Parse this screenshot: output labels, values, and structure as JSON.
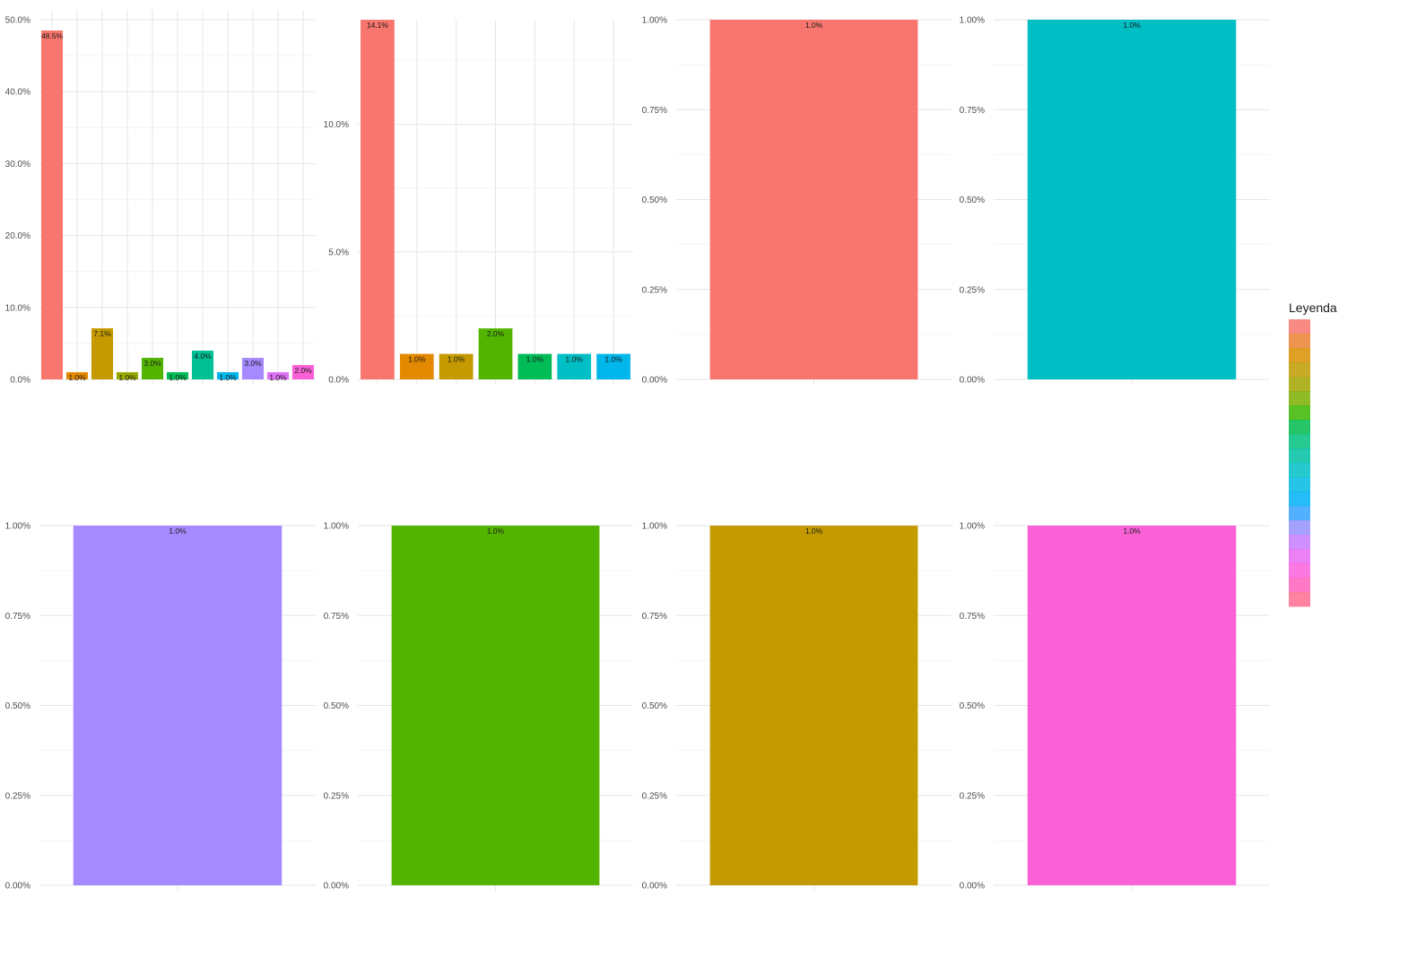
{
  "chart_data": [
    {
      "type": "bar",
      "y_ticks": [
        "0.0%",
        "10.0%",
        "20.0%",
        "30.0%",
        "40.0%",
        "50.0%"
      ],
      "ylim": [
        0,
        50
      ],
      "values": [
        48.5,
        1.0,
        7.1,
        1.0,
        3.0,
        1.0,
        4.0,
        1.0,
        3.0,
        1.0,
        2.0
      ],
      "labels": [
        "48.5%",
        "1.0%",
        "7.1%",
        "1.0%",
        "3.0%",
        "1.0%",
        "4.0%",
        "1.0%",
        "3.0%",
        "1.0%",
        "2.0%"
      ],
      "colors": [
        "#F8766D",
        "#E38900",
        "#C49A00",
        "#99A800",
        "#53B400",
        "#00BC56",
        "#00C094",
        "#00B6EB",
        "#A58AFF",
        "#DF70F8",
        "#FB61D7"
      ],
      "grid": true
    },
    {
      "type": "bar",
      "y_ticks": [
        "0.0%",
        "5.0%",
        "10.0%"
      ],
      "ylim": [
        0,
        14.1
      ],
      "values": [
        14.1,
        1.0,
        1.0,
        2.0,
        1.0,
        1.0,
        1.0
      ],
      "labels": [
        "14.1%",
        "1.0%",
        "1.0%",
        "2.0%",
        "1.0%",
        "1.0%",
        "1.0%"
      ],
      "colors": [
        "#F8766D",
        "#E38900",
        "#C49A00",
        "#53B400",
        "#00BC56",
        "#00BFC4",
        "#00B6EB"
      ],
      "grid": true
    },
    {
      "type": "bar",
      "y_ticks": [
        "0.00%",
        "0.25%",
        "0.50%",
        "0.75%",
        "1.00%"
      ],
      "ylim": [
        0,
        1.0
      ],
      "values": [
        1.0
      ],
      "labels": [
        "1.0%"
      ],
      "colors": [
        "#F8766D"
      ],
      "grid": true
    },
    {
      "type": "bar",
      "y_ticks": [
        "0.00%",
        "0.25%",
        "0.50%",
        "0.75%",
        "1.00%"
      ],
      "ylim": [
        0,
        1.0
      ],
      "values": [
        1.0
      ],
      "labels": [
        "1.0%"
      ],
      "colors": [
        "#00BFC4"
      ],
      "grid": true
    },
    {
      "type": "bar",
      "y_ticks": [
        "0.00%",
        "0.25%",
        "0.50%",
        "0.75%",
        "1.00%"
      ],
      "ylim": [
        0,
        1.0
      ],
      "values": [
        1.0
      ],
      "labels": [
        "1.0%"
      ],
      "colors": [
        "#A58AFF"
      ],
      "grid": true
    },
    {
      "type": "bar",
      "y_ticks": [
        "0.00%",
        "0.25%",
        "0.50%",
        "0.75%",
        "1.00%"
      ],
      "ylim": [
        0,
        1.0
      ],
      "values": [
        1.0
      ],
      "labels": [
        "1.0%"
      ],
      "colors": [
        "#53B400"
      ],
      "grid": true
    },
    {
      "type": "bar",
      "y_ticks": [
        "0.00%",
        "0.25%",
        "0.50%",
        "0.75%",
        "1.00%"
      ],
      "ylim": [
        0,
        1.0
      ],
      "values": [
        1.0
      ],
      "labels": [
        "1.0%"
      ],
      "colors": [
        "#C49A00"
      ],
      "grid": true
    },
    {
      "type": "bar",
      "y_ticks": [
        "0.00%",
        "0.25%",
        "0.50%",
        "0.75%",
        "1.00%"
      ],
      "ylim": [
        0,
        1.0
      ],
      "values": [
        1.0
      ],
      "labels": [
        "1.0%"
      ],
      "colors": [
        "#FB61D7"
      ],
      "grid": true
    }
  ],
  "legend": {
    "title": "Leyenda",
    "placement": "right",
    "colors": [
      "#F8766D",
      "#EA8331",
      "#D89000",
      "#C09B00",
      "#A3A500",
      "#7CAE00",
      "#39B600",
      "#00BB4E",
      "#00BF7D",
      "#00C1A3",
      "#00BFC4",
      "#00BAE0",
      "#00B0F6",
      "#35A2FF",
      "#9590FF",
      "#C77CFF",
      "#E76BF3",
      "#FA62DB",
      "#FF62BC",
      "#FF6C91"
    ]
  }
}
